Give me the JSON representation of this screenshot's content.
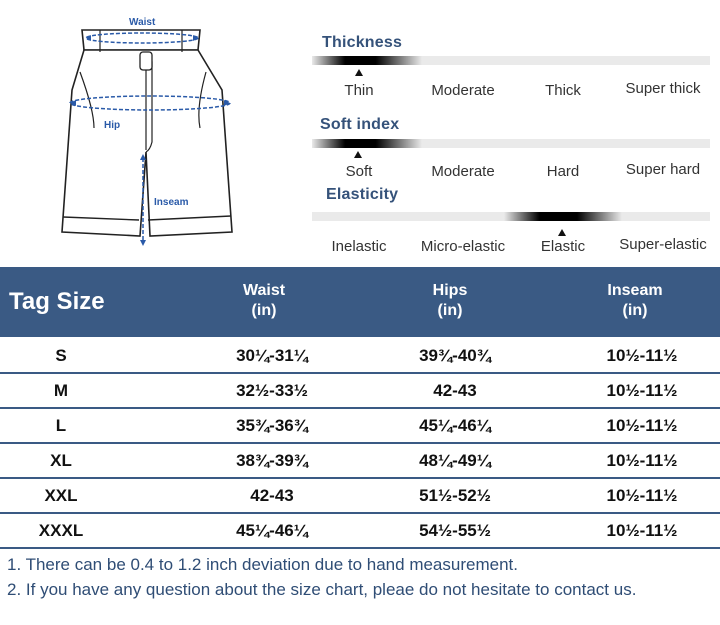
{
  "illustration": {
    "waist_label": "Waist",
    "hip_label": "Hip",
    "inseam_label": "Inseam"
  },
  "properties": [
    {
      "title": "Thickness",
      "options": [
        "Thin",
        "Moderate",
        "Thick",
        "Super thick"
      ],
      "selected_index": 0
    },
    {
      "title": "Soft index",
      "options": [
        "Soft",
        "Moderate",
        "Hard",
        "Super hard"
      ],
      "selected_index": 0
    },
    {
      "title": "Elasticity",
      "options": [
        "Inelastic",
        "Micro-elastic",
        "Elastic",
        "Super-elastic"
      ],
      "selected_index": 2
    }
  ],
  "table": {
    "header": {
      "tag": "Tag Size",
      "waist": "Waist",
      "hips": "Hips",
      "inseam": "Inseam",
      "unit": "(in)"
    },
    "rows": [
      {
        "size": "S",
        "waist": "30¼-31¼",
        "hips": "39¾-40¾",
        "inseam": "10½-11½"
      },
      {
        "size": "M",
        "waist": "32½-33½",
        "hips": "42-43",
        "inseam": "10½-11½"
      },
      {
        "size": "L",
        "waist": "35¾-36¾",
        "hips": "45¼-46¼",
        "inseam": "10½-11½"
      },
      {
        "size": "XL",
        "waist": "38¾-39¾",
        "hips": "48¼-49¼",
        "inseam": "10½-11½"
      },
      {
        "size": "XXL",
        "waist": "42-43",
        "hips": "51½-52½",
        "inseam": "10½-11½"
      },
      {
        "size": "XXXL",
        "waist": "45¼-46¼",
        "hips": "54½-55½",
        "inseam": "10½-11½"
      }
    ]
  },
  "notes": [
    "1. There can be 0.4 to 1.2 inch deviation due to hand measurement.",
    "2. If you have any question about the size chart, pleae do not hesitate to contact us."
  ],
  "colors": {
    "header_bg": "#3a5a84",
    "title_text": "#35527a",
    "measure_blue": "#2a5aa8"
  }
}
